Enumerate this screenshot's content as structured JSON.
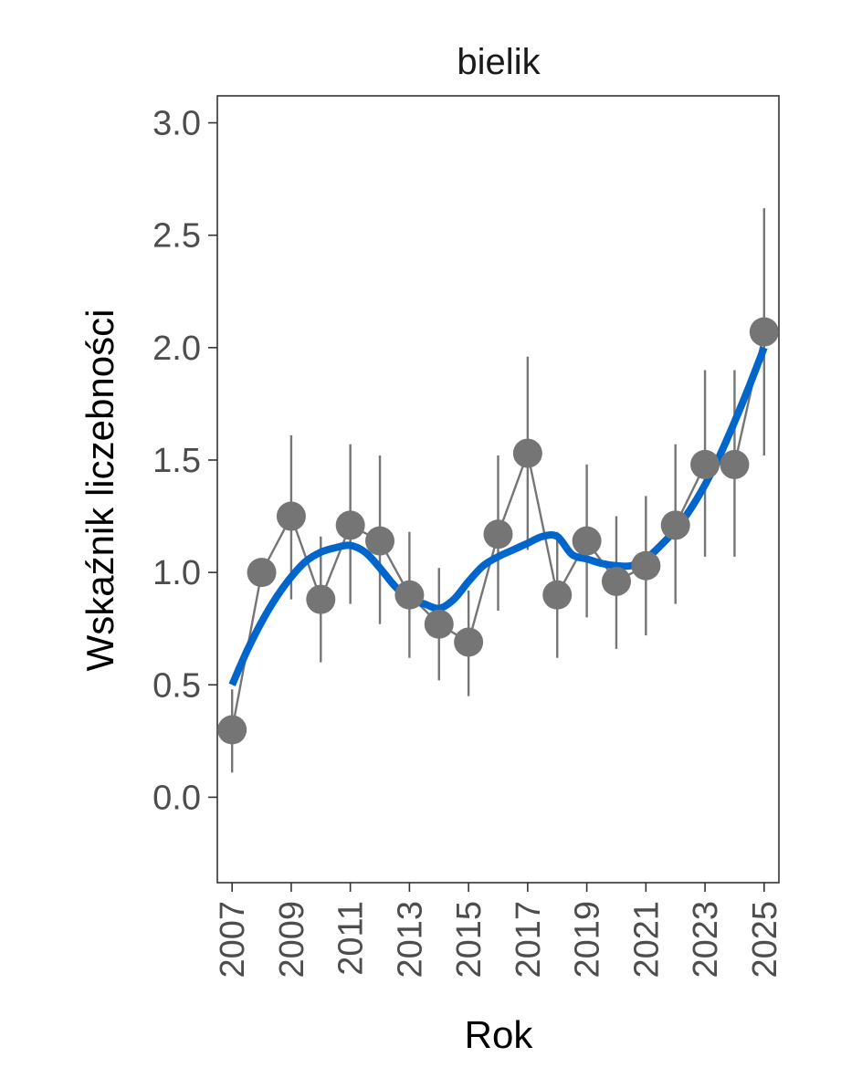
{
  "chart_data": {
    "type": "line",
    "title": "bielik",
    "xlabel": "Rok",
    "ylabel": "Wskaźnik liczebności",
    "xlim": [
      2006.5,
      2025.5
    ],
    "ylim": [
      -0.38,
      3.12
    ],
    "x_ticks": [
      2007,
      2009,
      2011,
      2013,
      2015,
      2017,
      2019,
      2021,
      2023,
      2025
    ],
    "y_ticks": [
      0.0,
      0.5,
      1.0,
      1.5,
      2.0,
      2.5,
      3.0
    ],
    "y_tick_labels": [
      "0.0",
      "0.5",
      "1.0",
      "1.5",
      "2.0",
      "2.5",
      "3.0"
    ],
    "grid": false,
    "x": [
      2007,
      2008,
      2009,
      2010,
      2011,
      2012,
      2013,
      2014,
      2015,
      2016,
      2017,
      2018,
      2019,
      2020,
      2021,
      2022,
      2023,
      2024,
      2025
    ],
    "series": [
      {
        "values": [
          0.3,
          1.0,
          1.25,
          0.88,
          1.21,
          1.14,
          0.9,
          0.77,
          0.69,
          1.17,
          1.53,
          0.9,
          1.14,
          0.96,
          1.03,
          1.21,
          1.48,
          1.48,
          2.07
        ],
        "lower": [
          0.11,
          null,
          0.88,
          0.6,
          0.86,
          0.77,
          0.62,
          0.52,
          0.45,
          0.83,
          1.1,
          0.62,
          0.8,
          0.66,
          0.72,
          0.86,
          1.07,
          1.07,
          1.52
        ],
        "upper": [
          0.48,
          null,
          1.61,
          1.16,
          1.57,
          1.52,
          1.18,
          1.02,
          0.92,
          1.52,
          1.96,
          1.18,
          1.48,
          1.25,
          1.34,
          1.57,
          1.9,
          1.9,
          2.62
        ],
        "color": "#757575"
      },
      {
        "type": "smooth",
        "x": [
          2007,
          2007.5,
          2008,
          2008.5,
          2009,
          2009.5,
          2010,
          2010.5,
          2011,
          2011.5,
          2012,
          2012.5,
          2013,
          2013.5,
          2014,
          2014.5,
          2015,
          2015.5,
          2016,
          2016.5,
          2017,
          2017.5,
          2018,
          2018.5,
          2019,
          2019.5,
          2020,
          2020.5,
          2021,
          2021.5,
          2022,
          2022.5,
          2023,
          2023.5,
          2024,
          2024.5,
          2025
        ],
        "values": [
          0.5,
          0.65,
          0.78,
          0.89,
          0.98,
          1.05,
          1.09,
          1.11,
          1.12,
          1.09,
          1.02,
          0.94,
          0.88,
          0.86,
          0.84,
          0.88,
          0.96,
          1.03,
          1.07,
          1.1,
          1.13,
          1.16,
          1.16,
          1.08,
          1.06,
          1.04,
          1.03,
          1.03,
          1.06,
          1.12,
          1.19,
          1.28,
          1.39,
          1.52,
          1.67,
          1.83,
          2.0
        ],
        "color": "#0066cc"
      }
    ]
  }
}
